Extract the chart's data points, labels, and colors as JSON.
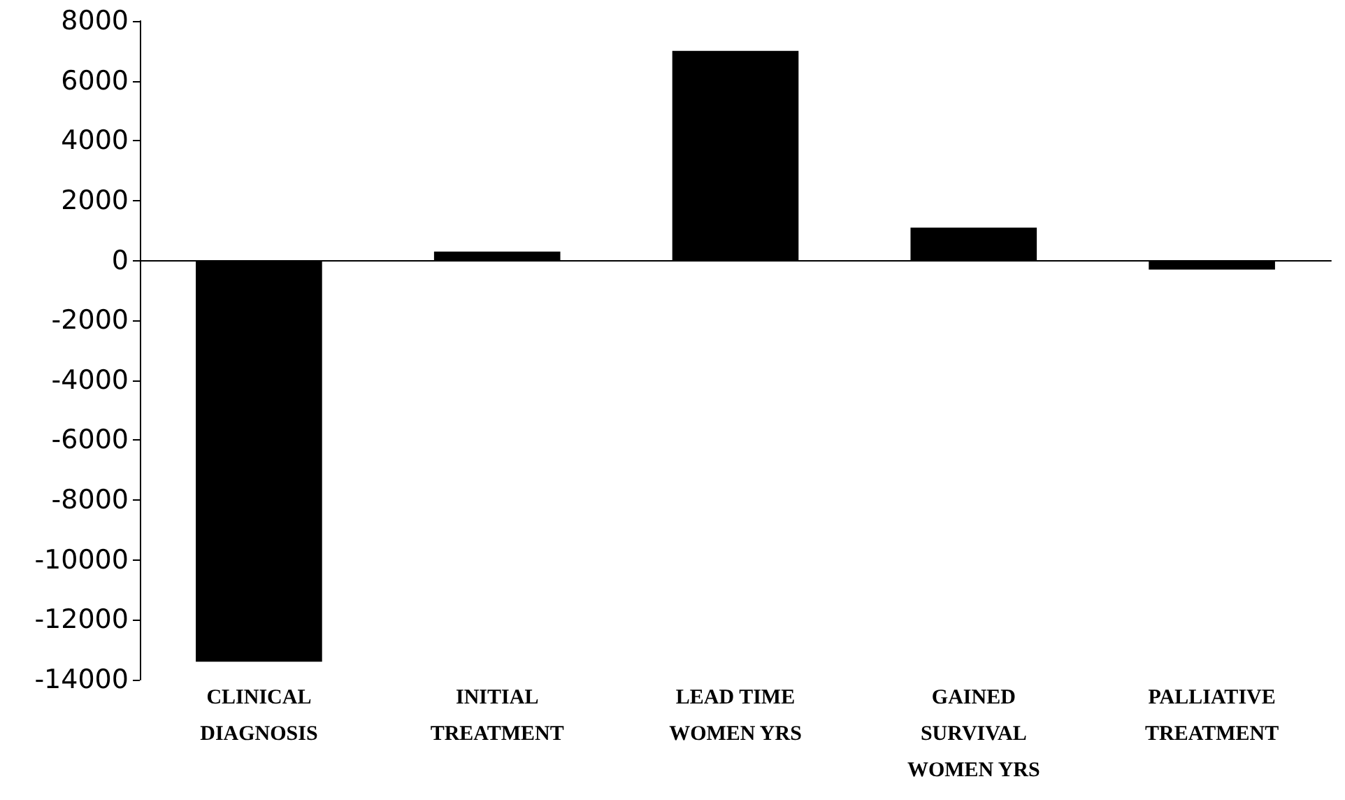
{
  "chart_data": {
    "type": "bar",
    "categories": [
      "CLINICAL\nDIAGNOSIS",
      "INITIAL\nTREATMENT",
      "LEAD TIME\nWOMEN YRS",
      "GAINED\nSURVIVAL\nWOMEN YRS",
      "PALLIATIVE\nTREATMENT"
    ],
    "values": [
      -13400,
      300,
      7000,
      1100,
      -300
    ],
    "color": "#000000",
    "ylim": [
      -14000,
      8000
    ],
    "yticks": [
      -14000,
      -12000,
      -10000,
      -8000,
      -6000,
      -4000,
      -2000,
      0,
      2000,
      4000,
      6000,
      8000
    ]
  }
}
